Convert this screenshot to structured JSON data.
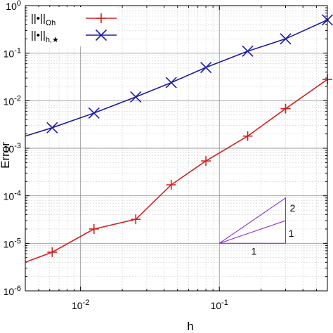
{
  "chart_data": {
    "type": "line",
    "title": "",
    "xlabel": "h",
    "ylabel": "Error",
    "x_scale": "log",
    "y_scale": "log",
    "xlim": [
      0.004,
      0.6
    ],
    "ylim": [
      1e-06,
      1
    ],
    "grid": true,
    "legend_position": "top-left",
    "x_tick_labels": [
      {
        "value": 0.01,
        "base": "10",
        "exp": "-2"
      },
      {
        "value": 0.1,
        "base": "10",
        "exp": "-1"
      }
    ],
    "y_tick_labels": [
      {
        "value": 1,
        "base": "10",
        "exp": "0"
      },
      {
        "value": 0.1,
        "base": "10",
        "exp": "-1"
      },
      {
        "value": 0.01,
        "base": "10",
        "exp": "-2"
      },
      {
        "value": 0.001,
        "base": "10",
        "exp": "-3"
      },
      {
        "value": 0.0001,
        "base": "10",
        "exp": "-4"
      },
      {
        "value": 1e-05,
        "base": "10",
        "exp": "-5"
      },
      {
        "value": 1e-06,
        "base": "10",
        "exp": "-6"
      }
    ],
    "series": [
      {
        "name": "||•||Ωh",
        "legend_main": "||•||",
        "legend_sub": "Ωh",
        "color": "#d42020",
        "marker": "plus",
        "x": [
          0.004,
          0.00625,
          0.0125,
          0.025,
          0.045,
          0.08,
          0.16,
          0.3,
          0.6
        ],
        "y": [
          4e-06,
          6.5e-06,
          2e-05,
          3.2e-05,
          0.00017,
          0.00054,
          0.0018,
          0.0068,
          0.028
        ],
        "marker_shown": [
          false,
          true,
          true,
          true,
          true,
          true,
          true,
          true,
          true
        ]
      },
      {
        "name": "||•||h,★",
        "legend_main": "||•||",
        "legend_sub": "h,★",
        "color": "#1c1ca8",
        "marker": "cross",
        "x": [
          0.004,
          0.00625,
          0.0125,
          0.025,
          0.045,
          0.08,
          0.16,
          0.3,
          0.6
        ],
        "y": [
          0.0018,
          0.0027,
          0.0055,
          0.012,
          0.024,
          0.05,
          0.11,
          0.2,
          0.5
        ],
        "marker_shown": [
          false,
          true,
          true,
          true,
          true,
          true,
          true,
          true,
          true
        ]
      }
    ],
    "slope_triangle": {
      "color": "#8a2be2",
      "base_x": [
        0.1,
        0.3
      ],
      "base_y": 1e-05,
      "slope1_top_y": 3e-05,
      "slope2_top_y": 9e-05,
      "labels": {
        "run": "1",
        "slope1": "1",
        "slope2": "2"
      }
    }
  }
}
